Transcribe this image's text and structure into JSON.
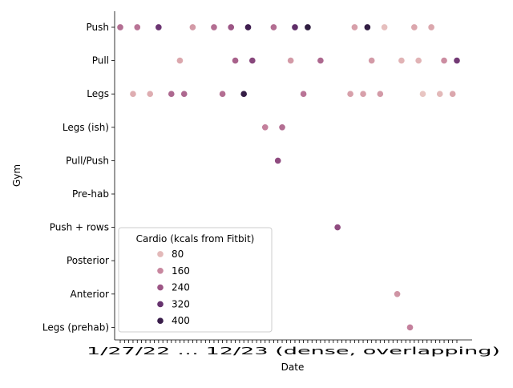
{
  "chart_data": {
    "type": "scatter",
    "xlabel": "Date",
    "ylabel": "Gym",
    "y_categories": [
      "Push",
      "Pull",
      "Legs",
      "Legs (ish)",
      "Pull/Push",
      "Pre-hab",
      "Push + rows",
      "Posterior",
      "Anterior",
      "Legs (prehab)"
    ],
    "x_tick_labels_visible": "1/27/22 … 12/23 (dense, overlapping)",
    "x_index_count": 80,
    "points": [
      {
        "x": 1,
        "y": "Push",
        "cardio": 200
      },
      {
        "x": 4,
        "y": "Legs",
        "cardio": 100
      },
      {
        "x": 5,
        "y": "Push",
        "cardio": 190
      },
      {
        "x": 8,
        "y": "Legs",
        "cardio": 100
      },
      {
        "x": 10,
        "y": "Push",
        "cardio": 310
      },
      {
        "x": 13,
        "y": "Legs",
        "cardio": 210
      },
      {
        "x": 15,
        "y": "Pull",
        "cardio": 110
      },
      {
        "x": 16,
        "y": "Legs",
        "cardio": 210
      },
      {
        "x": 18,
        "y": "Push",
        "cardio": 130
      },
      {
        "x": 23,
        "y": "Push",
        "cardio": 200
      },
      {
        "x": 25,
        "y": "Legs",
        "cardio": 200
      },
      {
        "x": 27,
        "y": "Push",
        "cardio": 240
      },
      {
        "x": 28,
        "y": "Pull",
        "cardio": 220
      },
      {
        "x": 30,
        "y": "Legs",
        "cardio": 420
      },
      {
        "x": 31,
        "y": "Push",
        "cardio": 380
      },
      {
        "x": 32,
        "y": "Pull",
        "cardio": 270
      },
      {
        "x": 35,
        "y": "Legs (ish)",
        "cardio": 170
      },
      {
        "x": 37,
        "y": "Push",
        "cardio": 200
      },
      {
        "x": 38,
        "y": "Pull/Push",
        "cardio": 260
      },
      {
        "x": 39,
        "y": "Legs (ish)",
        "cardio": 200
      },
      {
        "x": 41,
        "y": "Pull",
        "cardio": 130
      },
      {
        "x": 42,
        "y": "Push",
        "cardio": 330
      },
      {
        "x": 44,
        "y": "Legs",
        "cardio": 190
      },
      {
        "x": 45,
        "y": "Push",
        "cardio": 440
      },
      {
        "x": 48,
        "y": "Pull",
        "cardio": 210
      },
      {
        "x": 52,
        "y": "Push + rows",
        "cardio": 260
      },
      {
        "x": 55,
        "y": "Legs",
        "cardio": 120
      },
      {
        "x": 56,
        "y": "Push",
        "cardio": 120
      },
      {
        "x": 58,
        "y": "Legs",
        "cardio": 120
      },
      {
        "x": 59,
        "y": "Push",
        "cardio": 430
      },
      {
        "x": 60,
        "y": "Pull",
        "cardio": 130
      },
      {
        "x": 62,
        "y": "Legs",
        "cardio": 130
      },
      {
        "x": 63,
        "y": "Push",
        "cardio": 70
      },
      {
        "x": 66,
        "y": "Anterior",
        "cardio": 140
      },
      {
        "x": 67,
        "y": "Pull",
        "cardio": 90
      },
      {
        "x": 69,
        "y": "Legs (prehab)",
        "cardio": 170
      },
      {
        "x": 70,
        "y": "Push",
        "cardio": 110
      },
      {
        "x": 71,
        "y": "Pull",
        "cardio": 90
      },
      {
        "x": 72,
        "y": "Legs",
        "cardio": 60
      },
      {
        "x": 74,
        "y": "Push",
        "cardio": 110
      },
      {
        "x": 76,
        "y": "Legs",
        "cardio": 80
      },
      {
        "x": 77,
        "y": "Pull",
        "cardio": 150
      },
      {
        "x": 79,
        "y": "Legs",
        "cardio": 110
      },
      {
        "x": 80,
        "y": "Pull",
        "cardio": 300
      }
    ],
    "legend": {
      "title": "Cardio (kcals from Fitbit)",
      "placement": "lower-left",
      "entries": [
        {
          "label": "80",
          "value": 80
        },
        {
          "label": "160",
          "value": 160
        },
        {
          "label": "240",
          "value": 240
        },
        {
          "label": "320",
          "value": 320
        },
        {
          "label": "400",
          "value": 400
        }
      ]
    },
    "color_scale": {
      "min": 40,
      "max": 450,
      "stops": [
        "#edd1cb",
        "#dca8ad",
        "#c17c9a",
        "#995283",
        "#6a3471",
        "#3e1c4e",
        "#2d1e3e"
      ]
    }
  }
}
